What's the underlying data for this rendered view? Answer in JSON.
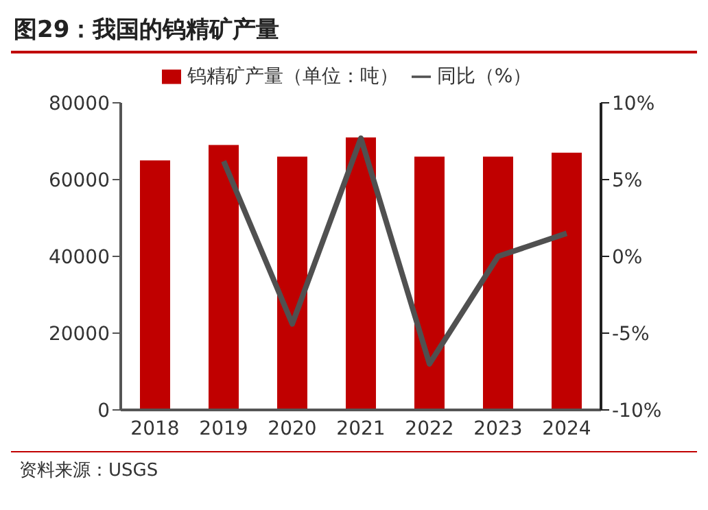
{
  "chart_data": {
    "type": "bar",
    "title": "图29：我国的钨精矿产量",
    "categories": [
      "2018",
      "2019",
      "2020",
      "2021",
      "2022",
      "2023",
      "2024"
    ],
    "series": [
      {
        "name": "钨精矿产量（单位：吨）",
        "color": "#c00000",
        "values": [
          65000,
          69000,
          66000,
          71000,
          66000,
          66000,
          67000
        ]
      },
      {
        "name": "同比（%）",
        "type": "line",
        "axis": "y2",
        "color": "#505050",
        "values": [
          null,
          6.2,
          -4.4,
          7.7,
          -7.0,
          0,
          1.5
        ]
      }
    ],
    "ylim": [
      0,
      80000
    ],
    "yticks": [
      0,
      20000,
      40000,
      60000,
      80000
    ],
    "y2lim": [
      -10,
      10
    ],
    "y2ticks": [
      {
        "value": -10,
        "label": "-10%"
      },
      {
        "value": -5,
        "label": "-5%"
      },
      {
        "value": 0,
        "label": "0%"
      },
      {
        "value": 5,
        "label": "5%"
      },
      {
        "value": 10,
        "label": "10%"
      }
    ],
    "legend": "top",
    "grid": false,
    "marker": "none",
    "line_style": "solid",
    "annotations": [
      "资料来源：USGS"
    ]
  }
}
